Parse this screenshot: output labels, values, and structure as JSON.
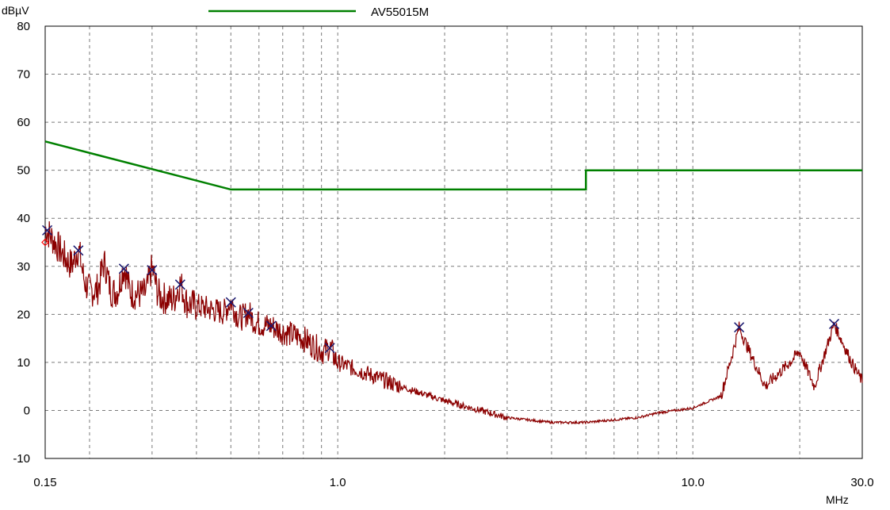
{
  "chart_data": {
    "type": "line",
    "xscale": "log",
    "xlim": [
      0.15,
      30.0
    ],
    "ylim": [
      -10,
      80
    ],
    "xticks": [
      {
        "value": 0.15,
        "label": "0.15"
      },
      {
        "value": 1.0,
        "label": "1.0"
      },
      {
        "value": 10.0,
        "label": "10.0"
      },
      {
        "value": 30.0,
        "label": "30.0"
      }
    ],
    "yticks": [
      {
        "value": 80,
        "label": "80"
      },
      {
        "value": 70,
        "label": "70"
      },
      {
        "value": 60,
        "label": "60"
      },
      {
        "value": 50,
        "label": "50"
      },
      {
        "value": 40,
        "label": "40"
      },
      {
        "value": 30,
        "label": "30"
      },
      {
        "value": 20,
        "label": "20"
      },
      {
        "value": 10,
        "label": "10"
      },
      {
        "value": 0,
        "label": "0"
      },
      {
        "value": -10,
        "label": "-10"
      }
    ],
    "xlabel": "MHz",
    "ylabel": "dBµV",
    "grid": true,
    "legend": {
      "placement": "top",
      "entries": [
        {
          "name": "AV55015M",
          "color": "#008000"
        }
      ]
    },
    "series": [
      {
        "name": "AV55015M",
        "color": "#008000",
        "x": [
          0.15,
          0.5,
          0.5,
          5.0,
          5.0,
          30.0
        ],
        "y": [
          56,
          46,
          46,
          46,
          50,
          50
        ]
      },
      {
        "color": "#8b0000",
        "x": [
          0.15,
          0.17,
          0.2,
          0.3,
          0.5,
          0.8,
          1.0,
          1.5,
          2.0,
          3.0,
          4.0,
          5.0,
          7.0,
          8.0,
          10.0,
          12.0,
          13.5,
          16.0,
          20.0,
          22.0,
          25.0,
          28.0,
          30.0
        ],
        "y": [
          38,
          32,
          25,
          24,
          20,
          15,
          10,
          5,
          2,
          -1.5,
          -2.5,
          -2.5,
          -1.5,
          -0.5,
          0.5,
          3,
          17,
          5,
          12,
          5,
          18,
          10,
          6
        ]
      }
    ],
    "markers": {
      "color": "#191970",
      "x": [
        0.152,
        0.186,
        0.25,
        0.3,
        0.36,
        0.5,
        0.56,
        0.65,
        0.95,
        13.5,
        25.0
      ],
      "y": [
        37.5,
        33.3,
        29.5,
        29.2,
        26.2,
        22.5,
        20.3,
        17.6,
        13.0,
        17.3,
        18.0
      ]
    },
    "peaks": [
      {
        "x": 0.186,
        "y": 33.3
      },
      {
        "x": 0.22,
        "y": 30.5
      },
      {
        "x": 0.25,
        "y": 29.5
      },
      {
        "x": 0.3,
        "y": 29.2
      },
      {
        "x": 0.36,
        "y": 26.2
      },
      {
        "x": 0.5,
        "y": 22.5
      },
      {
        "x": 0.56,
        "y": 20.3
      },
      {
        "x": 0.65,
        "y": 17.6
      },
      {
        "x": 0.95,
        "y": 13.0
      },
      {
        "x": 13.5,
        "y": 17.3
      },
      {
        "x": 19.8,
        "y": 12.0
      },
      {
        "x": 25.0,
        "y": 18.0
      }
    ]
  }
}
